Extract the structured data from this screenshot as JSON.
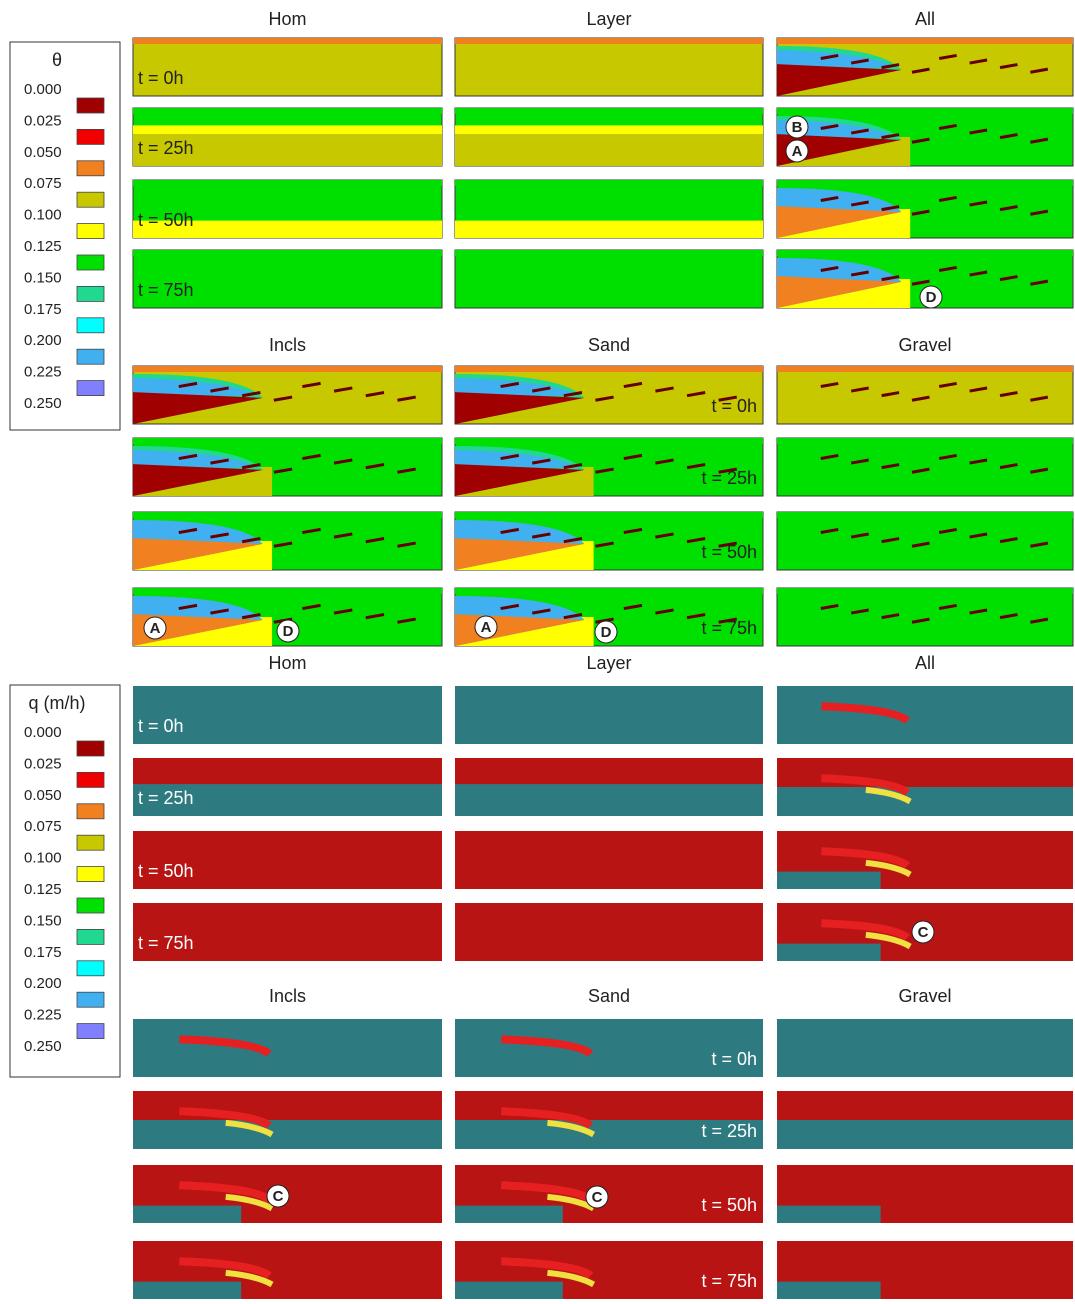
{
  "sections": [
    {
      "legend": {
        "title": "θ",
        "ticks": [
          "0.000",
          "0.025",
          "0.050",
          "0.075",
          "0.100",
          "0.125",
          "0.150",
          "0.175",
          "0.200",
          "0.225",
          "0.250"
        ]
      },
      "groups": [
        {
          "titles": [
            "Hom",
            "Layer",
            "All"
          ],
          "times": [
            "t = 0h",
            "t = 25h",
            "t = 50h",
            "t = 75h"
          ],
          "markers": [
            "B",
            "A",
            "D"
          ]
        },
        {
          "titles": [
            "Incls",
            "Sand",
            "Gravel"
          ],
          "times": [
            "t = 0h",
            "t = 25h",
            "t = 50h",
            "t = 75h"
          ],
          "markers": [
            "A",
            "D",
            "A",
            "D"
          ]
        }
      ]
    },
    {
      "legend": {
        "title": "q (m/h)",
        "ticks": [
          "0.000",
          "0.025",
          "0.050",
          "0.075",
          "0.100",
          "0.125",
          "0.150",
          "0.175",
          "0.200",
          "0.225",
          "0.250"
        ]
      },
      "groups": [
        {
          "titles": [
            "Hom",
            "Layer",
            "All"
          ],
          "times": [
            "t = 0h",
            "t = 25h",
            "t = 50h",
            "t = 75h"
          ],
          "markers": [
            "C"
          ]
        },
        {
          "titles": [
            "Incls",
            "Sand",
            "Gravel"
          ],
          "times": [
            "t = 0h",
            "t = 25h",
            "t = 50h",
            "t = 75h"
          ],
          "markers": [
            "C",
            "C"
          ]
        }
      ]
    }
  ]
}
